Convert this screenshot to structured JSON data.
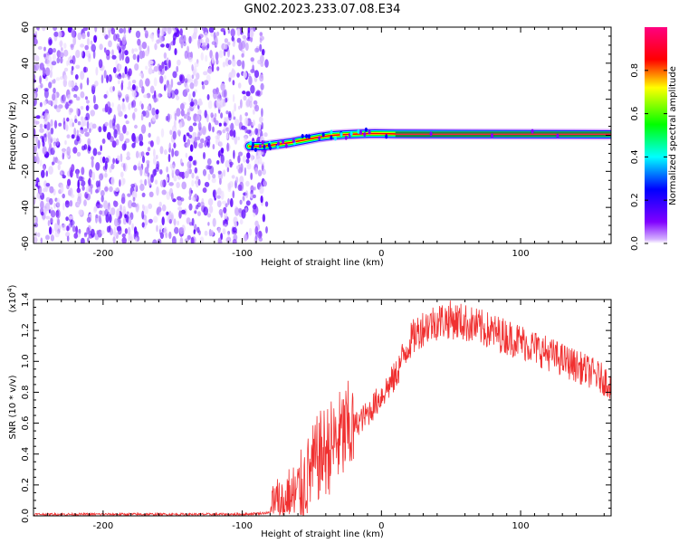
{
  "figure": {
    "title": "GN02.2023.233.07.08.E34"
  },
  "chart_data": [
    {
      "type": "heatmap",
      "title": "GN02.2023.233.07.08.E34",
      "xlabel": "Height of straight line (km)",
      "ylabel": "Frequency (Hz)",
      "xlim": [
        -250,
        165
      ],
      "ylim": [
        -60,
        60
      ],
      "xticks": [
        -200,
        -100,
        0,
        100
      ],
      "yticks": [
        -60,
        -40,
        -20,
        0,
        20,
        40,
        60
      ],
      "colorbar": {
        "label": "Normalized spectral amplitude",
        "range": [
          0,
          1
        ],
        "ticks": [
          0.0,
          0.2,
          0.4,
          0.6,
          0.8
        ],
        "colormap": [
          "#ffffff",
          "#8000ff",
          "#0000ff",
          "#00ffff",
          "#00ff00",
          "#ffff00",
          "#ff0000",
          "#ff0080"
        ]
      },
      "noise_region_x": [
        -250,
        -85
      ],
      "track": [
        {
          "x": -95,
          "f": -6.0
        },
        {
          "x": -85,
          "f": -6.0
        },
        {
          "x": -75,
          "f": -5.0
        },
        {
          "x": -65,
          "f": -4.0
        },
        {
          "x": -55,
          "f": -2.5
        },
        {
          "x": -45,
          "f": -1.0
        },
        {
          "x": -35,
          "f": 0.0
        },
        {
          "x": -25,
          "f": 0.5
        },
        {
          "x": -15,
          "f": 0.8
        },
        {
          "x": -5,
          "f": 1.0
        },
        {
          "x": 10,
          "f": 0.8
        },
        {
          "x": 165,
          "f": 0.5
        }
      ]
    },
    {
      "type": "line",
      "xlabel": "Height of straight line (km)",
      "ylabel": "SNR (10 * v/v)",
      "y_multiplier": "(x10",
      "y_multiplier_exp": "4",
      "y_multiplier_close": ")",
      "xlim": [
        -250,
        165
      ],
      "ylim": [
        0,
        1.4
      ],
      "xticks": [
        -200,
        -100,
        0,
        100
      ],
      "yticks": [
        0.0,
        0.2,
        0.4,
        0.6,
        0.8,
        1.0,
        1.2,
        1.4
      ],
      "color": "#f03030",
      "series": [
        {
          "x": [
            -250,
            -200,
            -150,
            -100,
            -80,
            -70,
            -60,
            -55,
            -50,
            -45,
            -40,
            -35,
            -30,
            -20,
            -10,
            0,
            10,
            15,
            20,
            25,
            30,
            40,
            50,
            60,
            70,
            80,
            90,
            100,
            110,
            120,
            130,
            140,
            150,
            160,
            165
          ],
          "y": [
            0.01,
            0.01,
            0.01,
            0.01,
            0.02,
            0.06,
            0.14,
            0.22,
            0.3,
            0.38,
            0.42,
            0.46,
            0.5,
            0.58,
            0.66,
            0.78,
            0.9,
            1.02,
            1.12,
            1.18,
            1.22,
            1.26,
            1.27,
            1.25,
            1.22,
            1.19,
            1.16,
            1.13,
            1.09,
            1.05,
            1.01,
            0.97,
            0.93,
            0.88,
            0.85
          ]
        }
      ]
    }
  ]
}
